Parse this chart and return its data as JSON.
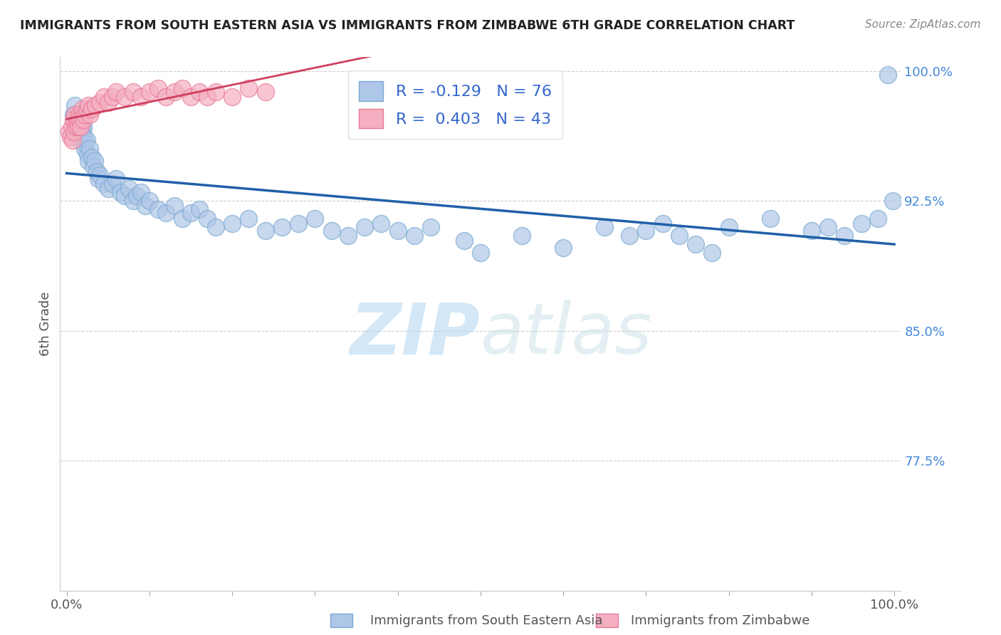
{
  "title": "IMMIGRANTS FROM SOUTH EASTERN ASIA VS IMMIGRANTS FROM ZIMBABWE 6TH GRADE CORRELATION CHART",
  "source": "Source: ZipAtlas.com",
  "ylabel": "6th Grade",
  "blue_R": -0.129,
  "blue_N": 76,
  "pink_R": 0.403,
  "pink_N": 43,
  "blue_color": "#aec6e8",
  "pink_color": "#f4afc0",
  "blue_edge_color": "#7aaad0",
  "pink_edge_color": "#e87898",
  "blue_line_color": "#2060a8",
  "pink_line_color": "#d04060",
  "legend_blue_label": "R = -0.129   N = 76",
  "legend_pink_label": "R =  0.403   N = 43",
  "ylim_low": 0.7,
  "ylim_high": 1.008,
  "xlim_low": -0.008,
  "xlim_high": 1.008,
  "ytick_vals": [
    0.775,
    0.85,
    0.925,
    1.0
  ],
  "ytick_labels": [
    "77.5%",
    "85.0%",
    "92.5%",
    "100.0%"
  ],
  "blue_x": [
    0.008,
    0.01,
    0.012,
    0.014,
    0.015,
    0.016,
    0.017,
    0.018,
    0.019,
    0.02,
    0.021,
    0.022,
    0.023,
    0.024,
    0.025,
    0.026,
    0.028,
    0.03,
    0.032,
    0.034,
    0.036,
    0.038,
    0.04,
    0.045,
    0.05,
    0.055,
    0.06,
    0.065,
    0.07,
    0.075,
    0.08,
    0.085,
    0.09,
    0.095,
    0.1,
    0.11,
    0.12,
    0.13,
    0.14,
    0.15,
    0.16,
    0.17,
    0.18,
    0.2,
    0.22,
    0.24,
    0.26,
    0.28,
    0.3,
    0.32,
    0.34,
    0.36,
    0.38,
    0.4,
    0.42,
    0.44,
    0.48,
    0.5,
    0.55,
    0.6,
    0.65,
    0.68,
    0.7,
    0.72,
    0.74,
    0.76,
    0.78,
    0.8,
    0.85,
    0.9,
    0.92,
    0.94,
    0.96,
    0.98,
    0.992,
    0.998
  ],
  "blue_y": [
    0.975,
    0.98,
    0.97,
    0.965,
    0.968,
    0.972,
    0.96,
    0.963,
    0.966,
    0.968,
    0.962,
    0.955,
    0.958,
    0.96,
    0.952,
    0.948,
    0.955,
    0.95,
    0.945,
    0.948,
    0.942,
    0.938,
    0.94,
    0.935,
    0.932,
    0.935,
    0.938,
    0.93,
    0.928,
    0.932,
    0.925,
    0.928,
    0.93,
    0.922,
    0.925,
    0.92,
    0.918,
    0.922,
    0.915,
    0.918,
    0.92,
    0.915,
    0.91,
    0.912,
    0.915,
    0.908,
    0.91,
    0.912,
    0.915,
    0.908,
    0.905,
    0.91,
    0.912,
    0.908,
    0.905,
    0.91,
    0.902,
    0.895,
    0.905,
    0.898,
    0.91,
    0.905,
    0.908,
    0.912,
    0.905,
    0.9,
    0.895,
    0.91,
    0.915,
    0.908,
    0.91,
    0.905,
    0.912,
    0.915,
    0.998,
    0.925
  ],
  "pink_x": [
    0.003,
    0.005,
    0.006,
    0.007,
    0.008,
    0.009,
    0.01,
    0.011,
    0.012,
    0.013,
    0.014,
    0.015,
    0.016,
    0.017,
    0.018,
    0.019,
    0.02,
    0.022,
    0.024,
    0.026,
    0.028,
    0.03,
    0.035,
    0.04,
    0.045,
    0.05,
    0.055,
    0.06,
    0.07,
    0.08,
    0.09,
    0.1,
    0.11,
    0.12,
    0.13,
    0.14,
    0.15,
    0.16,
    0.17,
    0.18,
    0.2,
    0.22,
    0.24
  ],
  "pink_y": [
    0.965,
    0.962,
    0.968,
    0.96,
    0.972,
    0.965,
    0.975,
    0.968,
    0.97,
    0.972,
    0.968,
    0.975,
    0.972,
    0.968,
    0.975,
    0.978,
    0.972,
    0.975,
    0.978,
    0.98,
    0.975,
    0.978,
    0.98,
    0.982,
    0.985,
    0.982,
    0.985,
    0.988,
    0.985,
    0.988,
    0.985,
    0.988,
    0.99,
    0.985,
    0.988,
    0.99,
    0.985,
    0.988,
    0.985,
    0.988,
    0.985,
    0.99,
    0.988
  ],
  "watermark_zip": "ZIP",
  "watermark_atlas": "atlas",
  "grid_color": "#cccccc",
  "background_color": "#ffffff"
}
